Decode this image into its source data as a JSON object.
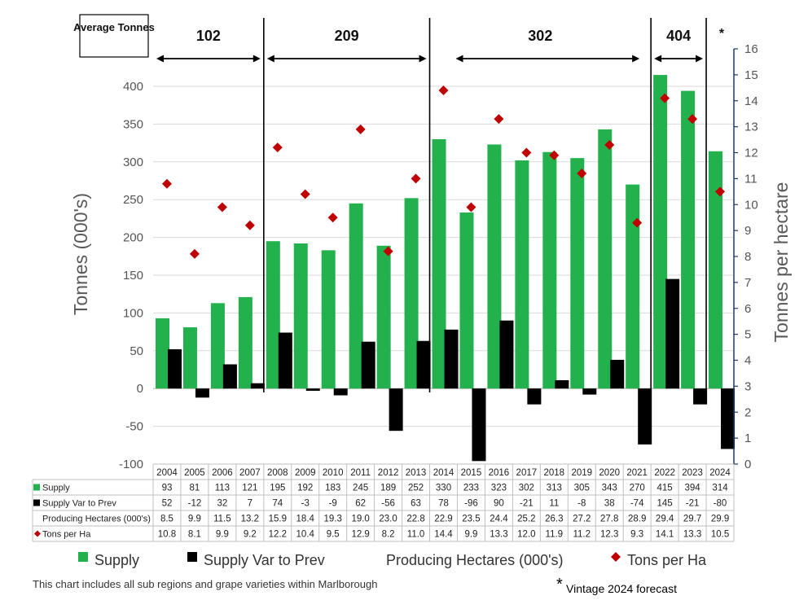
{
  "avg_label": "Average Tonnes",
  "footnote": "This chart includes all sub regions and grape varieties within Marlborough",
  "forecast_note": "Vintage 2024 forecast",
  "asterisk": "*",
  "colors": {
    "supply": "#22b14c",
    "variance": "#000000",
    "tons_per_ha": "#c00000",
    "grid": "#d9d9d9",
    "right_axis": "#1f3864"
  },
  "periods": [
    {
      "label": "102",
      "start": "2004",
      "end": "2007"
    },
    {
      "label": "209",
      "start": "2008",
      "end": "2013"
    },
    {
      "label": "302",
      "start": "2014",
      "end": "2021"
    },
    {
      "label": "404",
      "start": "2022",
      "end": "2023"
    }
  ],
  "chart_data": {
    "type": "bar",
    "categories": [
      "2004",
      "2005",
      "2006",
      "2007",
      "2008",
      "2009",
      "2010",
      "2011",
      "2012",
      "2013",
      "2014",
      "2015",
      "2016",
      "2017",
      "2018",
      "2019",
      "2020",
      "2021",
      "2022",
      "2023",
      "2024"
    ],
    "ylabel": "Tonnes (000's)",
    "y2label": "Tonnes per hectare",
    "ylim": [
      -100,
      400
    ],
    "yticks": [
      -100,
      -50,
      0,
      50,
      100,
      150,
      200,
      250,
      300,
      350,
      400
    ],
    "y2lim": [
      0,
      16
    ],
    "y2ticks": [
      0,
      1,
      2,
      3,
      4,
      5,
      6,
      7,
      8,
      9,
      10,
      11,
      12,
      13,
      14,
      15,
      16
    ],
    "series": [
      {
        "name": "Supply",
        "kind": "bar",
        "axis": "left",
        "values": [
          93,
          81,
          113,
          121,
          195,
          192,
          183,
          245,
          189,
          252,
          330,
          233,
          323,
          302,
          313,
          305,
          343,
          270,
          415,
          394,
          314
        ]
      },
      {
        "name": "Supply Var to Prev",
        "kind": "bar",
        "axis": "left",
        "values": [
          52,
          -12,
          32,
          7,
          74,
          -3,
          -9,
          62,
          -56,
          63,
          78,
          -96,
          90,
          -21,
          11,
          -8,
          38,
          -74,
          145,
          -21,
          -80
        ]
      },
      {
        "name": "Producing Hectares (000's)",
        "kind": "none",
        "axis": "none",
        "values": [
          8.5,
          9.9,
          11.5,
          13.2,
          15.9,
          18.4,
          19.3,
          19.0,
          23.0,
          22.8,
          22.9,
          23.5,
          24.4,
          25.2,
          26.3,
          27.2,
          27.8,
          28.9,
          29.4,
          29.7,
          29.9
        ]
      },
      {
        "name": "Tons per Ha",
        "kind": "marker",
        "axis": "right",
        "values": [
          10.8,
          8.1,
          9.9,
          9.2,
          12.2,
          10.4,
          9.5,
          12.9,
          8.2,
          11.0,
          14.4,
          9.9,
          13.3,
          12.0,
          11.9,
          11.2,
          12.3,
          9.3,
          14.1,
          13.3,
          10.5
        ]
      }
    ],
    "table_rows": [
      {
        "label": "Supply",
        "series": 0,
        "decimals": 0
      },
      {
        "label": "Supply Var to Prev",
        "series": 1,
        "decimals": 0
      },
      {
        "label": "Producing Hectares (000's)",
        "series": 2,
        "decimals": 1
      },
      {
        "label": "Tons per Ha",
        "series": 3,
        "decimals": 1
      }
    ],
    "legend": [
      "Supply",
      "Supply Var to Prev",
      "Producing Hectares (000's)",
      "Tons per Ha"
    ]
  }
}
